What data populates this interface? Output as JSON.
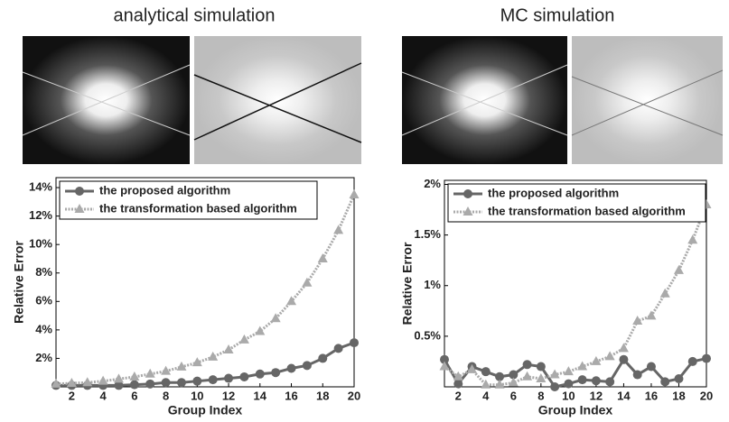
{
  "chart_data": [
    {
      "type": "line",
      "title": "analytical simulation",
      "xlabel": "Group Index",
      "ylabel": "Relative Error",
      "x": [
        1,
        2,
        3,
        4,
        5,
        6,
        7,
        8,
        9,
        10,
        11,
        12,
        13,
        14,
        15,
        16,
        17,
        18,
        19,
        20
      ],
      "xlim": [
        1,
        20
      ],
      "xticks": [
        2,
        4,
        6,
        8,
        10,
        12,
        14,
        16,
        18,
        20
      ],
      "ylim": [
        0,
        14.7
      ],
      "yticks": [
        {
          "value": 2,
          "label": "2%"
        },
        {
          "value": 4,
          "label": "4%"
        },
        {
          "value": 6,
          "label": "6%"
        },
        {
          "value": 8,
          "label": "8%"
        },
        {
          "value": 10,
          "label": "10%"
        },
        {
          "value": 12,
          "label": "12%"
        },
        {
          "value": 14,
          "label": "14%"
        }
      ],
      "legend": "upper left",
      "series": [
        {
          "name": "the proposed algorithm",
          "color": "#666666",
          "marker": "circle",
          "linestyle": "solid",
          "values": [
            0.1,
            0.1,
            0.1,
            0.1,
            0.1,
            0.15,
            0.2,
            0.3,
            0.3,
            0.4,
            0.5,
            0.6,
            0.7,
            0.9,
            1.0,
            1.3,
            1.5,
            2.0,
            2.7,
            3.1
          ]
        },
        {
          "name": "the transformation based algorithm",
          "color": "#aaaaaa",
          "marker": "triangle",
          "linestyle": "dotted",
          "values": [
            0.2,
            0.25,
            0.3,
            0.4,
            0.55,
            0.7,
            0.9,
            1.1,
            1.4,
            1.7,
            2.1,
            2.6,
            3.3,
            3.9,
            4.8,
            6.0,
            7.3,
            9.0,
            11.0,
            13.5
          ]
        }
      ]
    },
    {
      "type": "line",
      "title": "MC simulation",
      "xlabel": "Group Index",
      "ylabel": "Relative Error",
      "x": [
        1,
        2,
        3,
        4,
        5,
        6,
        7,
        8,
        9,
        10,
        11,
        12,
        13,
        14,
        15,
        16,
        17,
        18,
        19,
        20
      ],
      "xlim": [
        1,
        20
      ],
      "xticks": [
        2,
        4,
        6,
        8,
        10,
        12,
        14,
        16,
        18,
        20
      ],
      "ylim": [
        0,
        2.04
      ],
      "yticks": [
        {
          "value": 0.5,
          "label": "0.5%"
        },
        {
          "value": 1,
          "label": "1%"
        },
        {
          "value": 1.5,
          "label": "1.5%"
        },
        {
          "value": 2,
          "label": "2%"
        }
      ],
      "legend": "upper left",
      "series": [
        {
          "name": "the proposed algorithm",
          "color": "#666666",
          "marker": "circle",
          "linestyle": "solid",
          "values": [
            0.27,
            0.03,
            0.2,
            0.15,
            0.1,
            0.12,
            0.22,
            0.2,
            0.0,
            0.03,
            0.07,
            0.06,
            0.05,
            0.27,
            0.12,
            0.2,
            0.05,
            0.08,
            0.25,
            0.28
          ]
        },
        {
          "name": "the transformation based algorithm",
          "color": "#aaaaaa",
          "marker": "triangle",
          "linestyle": "dotted",
          "values": [
            0.2,
            0.1,
            0.17,
            0.02,
            0.02,
            0.04,
            0.1,
            0.08,
            0.12,
            0.15,
            0.2,
            0.25,
            0.3,
            0.38,
            0.65,
            0.7,
            0.92,
            1.15,
            1.45,
            1.8
          ]
        }
      ]
    }
  ]
}
